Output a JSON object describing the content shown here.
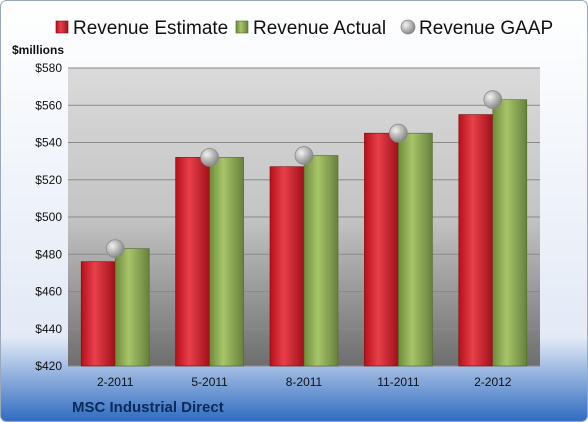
{
  "chart_data": {
    "type": "bar",
    "title": "",
    "company": "MSC Industrial Direct",
    "ylabel": "$millions",
    "xlabel": "",
    "categories": [
      "2-2011",
      "5-2011",
      "8-2011",
      "11-2011",
      "2-2012"
    ],
    "ylim": [
      420,
      580
    ],
    "yticks": [
      420,
      440,
      460,
      480,
      500,
      520,
      540,
      560,
      580
    ],
    "ytick_labels": [
      "$420",
      "$440",
      "$460",
      "$480",
      "$500",
      "$520",
      "$540",
      "$560",
      "$580"
    ],
    "grid": true,
    "legend_position": "top",
    "series": [
      {
        "name": "Revenue Estimate",
        "kind": "bar",
        "color": "#d0202a",
        "values": [
          476,
          532,
          527,
          545,
          555
        ]
      },
      {
        "name": "Revenue Actual",
        "kind": "bar",
        "color": "#8caa50",
        "values": [
          483,
          532,
          533,
          545,
          563
        ]
      },
      {
        "name": "Revenue GAAP",
        "kind": "marker",
        "color": "#b4b4b4",
        "values": [
          483,
          532,
          533,
          545,
          563
        ]
      }
    ]
  }
}
